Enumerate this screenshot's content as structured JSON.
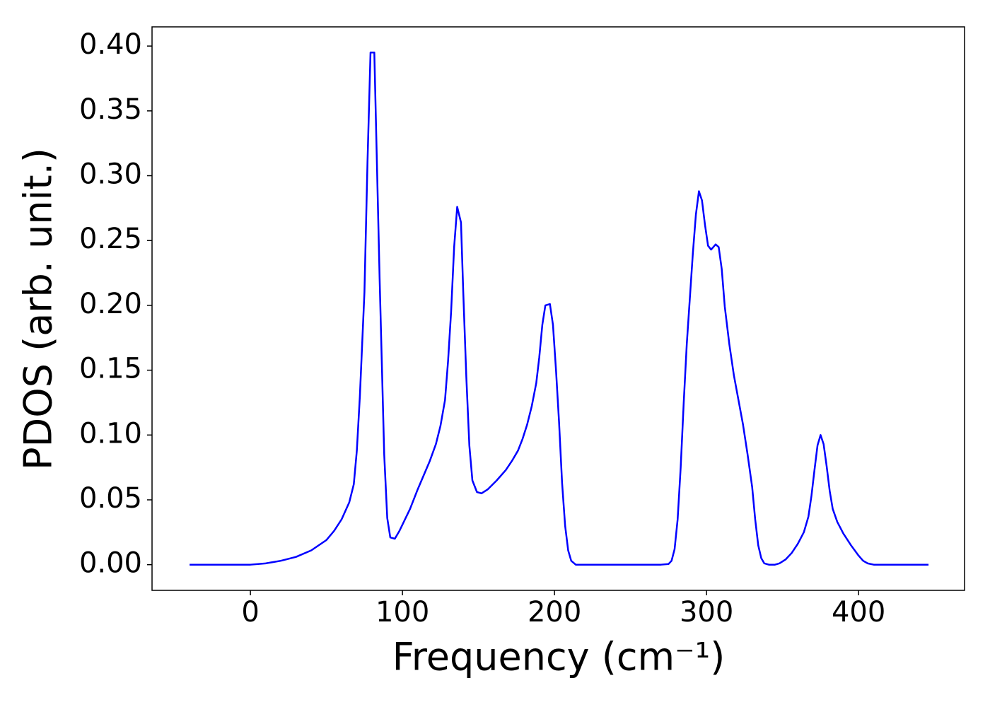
{
  "chart_data": {
    "type": "line",
    "x_label": "Frequency (cm⁻¹)",
    "y_label": "PDOS (arb. unit.)",
    "x": [
      -40,
      0,
      10,
      20,
      30,
      40,
      50,
      55,
      60,
      65,
      68,
      70,
      72,
      75,
      77,
      79,
      81.5,
      83,
      85,
      88,
      90,
      92,
      95,
      98,
      105,
      110,
      118,
      122,
      125,
      128,
      130,
      132,
      134,
      136,
      138.5,
      140,
      142,
      144,
      146,
      149,
      152,
      156,
      162,
      168,
      172,
      176,
      179,
      182,
      185,
      188,
      190,
      192,
      194,
      197,
      199,
      201,
      203,
      205,
      207,
      209,
      211,
      214,
      270,
      275,
      277,
      279,
      281,
      283,
      285,
      287,
      289,
      291,
      293,
      295,
      297,
      299,
      301,
      303,
      306,
      308,
      310,
      312,
      315,
      318,
      321,
      324,
      327,
      330,
      332,
      334,
      336,
      338,
      341,
      345,
      348,
      352,
      356,
      360,
      364,
      367,
      369,
      371,
      373,
      375,
      377,
      379,
      381,
      383,
      386,
      390,
      395,
      400,
      403,
      406,
      410,
      446
    ],
    "series": [
      {
        "color": "#0000ff",
        "values": [
          0,
          0,
          0.001,
          0.003,
          0.006,
          0.011,
          0.019,
          0.026,
          0.035,
          0.048,
          0.062,
          0.088,
          0.13,
          0.21,
          0.31,
          0.395,
          0.395,
          0.32,
          0.22,
          0.085,
          0.036,
          0.021,
          0.02,
          0.026,
          0.043,
          0.058,
          0.08,
          0.093,
          0.107,
          0.127,
          0.157,
          0.195,
          0.245,
          0.276,
          0.264,
          0.21,
          0.145,
          0.092,
          0.065,
          0.056,
          0.055,
          0.058,
          0.065,
          0.073,
          0.08,
          0.088,
          0.097,
          0.108,
          0.122,
          0.14,
          0.16,
          0.185,
          0.2,
          0.201,
          0.185,
          0.15,
          0.11,
          0.063,
          0.03,
          0.011,
          0.003,
          0,
          0,
          0.0005,
          0.003,
          0.012,
          0.035,
          0.075,
          0.125,
          0.17,
          0.205,
          0.24,
          0.27,
          0.288,
          0.281,
          0.262,
          0.246,
          0.243,
          0.247,
          0.245,
          0.228,
          0.199,
          0.17,
          0.146,
          0.127,
          0.108,
          0.085,
          0.06,
          0.035,
          0.015,
          0.005,
          0.001,
          0,
          0,
          0.001,
          0.004,
          0.009,
          0.016,
          0.025,
          0.037,
          0.053,
          0.073,
          0.092,
          0.1,
          0.093,
          0.076,
          0.057,
          0.043,
          0.033,
          0.024,
          0.015,
          0.007,
          0.003,
          0.001,
          0,
          0
        ]
      }
    ],
    "xlim": [
      -64.7,
      469.7
    ],
    "ylim": [
      -0.0198,
      0.4148
    ],
    "xticks": [
      0,
      100,
      200,
      300,
      400
    ],
    "yticks": [
      {
        "value": 0,
        "label": "0.00"
      },
      {
        "value": 0.05,
        "label": "0.05"
      },
      {
        "value": 0.1,
        "label": "0.10"
      },
      {
        "value": 0.15,
        "label": "0.15"
      },
      {
        "value": 0.2,
        "label": "0.20"
      },
      {
        "value": 0.25,
        "label": "0.25"
      },
      {
        "value": 0.3,
        "label": "0.30"
      },
      {
        "value": 0.35,
        "label": "0.35"
      },
      {
        "value": 0.4,
        "label": "0.40"
      }
    ],
    "grid": false
  }
}
